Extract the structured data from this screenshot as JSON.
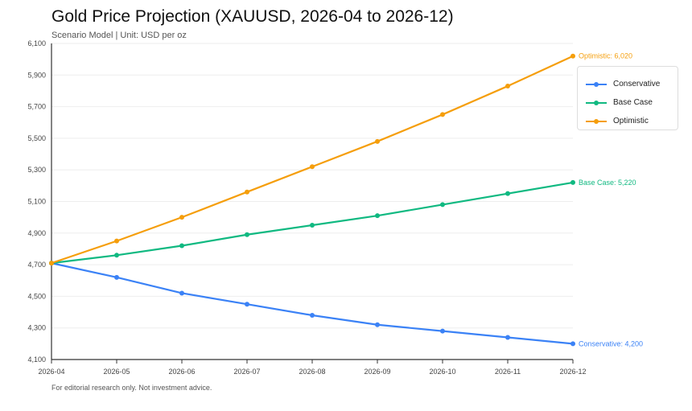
{
  "title": "Gold Price Projection (XAUUSD, 2026-04 to 2026-12)",
  "subtitle": "Scenario Model | Unit: USD per oz",
  "footnote": "For editorial research only. Not investment advice.",
  "chart_data": {
    "type": "line",
    "x": [
      "2026-04",
      "2026-05",
      "2026-06",
      "2026-07",
      "2026-08",
      "2026-09",
      "2026-10",
      "2026-11",
      "2026-12"
    ],
    "ylim": [
      4100,
      6100
    ],
    "yticks": [
      4100,
      4300,
      4500,
      4700,
      4900,
      5100,
      5300,
      5500,
      5700,
      5900,
      6100
    ],
    "ytick_labels": [
      "4,100",
      "4,300",
      "4,500",
      "4,700",
      "4,900",
      "5,100",
      "5,300",
      "5,500",
      "5,700",
      "5,900",
      "6,100"
    ],
    "grid": true,
    "legend_position": "top-right",
    "series": [
      {
        "name": "Conservative",
        "color": "#3b82f6",
        "end_label": "Conservative: 4,200",
        "values": [
          4710,
          4620,
          4520,
          4450,
          4380,
          4320,
          4280,
          4240,
          4200
        ]
      },
      {
        "name": "Base Case",
        "color": "#10b981",
        "end_label": "Base Case: 5,220",
        "values": [
          4710,
          4760,
          4820,
          4890,
          4950,
          5010,
          5080,
          5150,
          5220
        ]
      },
      {
        "name": "Optimistic",
        "color": "#f59e0b",
        "end_label": "Optimistic: 6,020",
        "values": [
          4710,
          4850,
          5000,
          5160,
          5320,
          5480,
          5650,
          5830,
          6020
        ]
      }
    ]
  }
}
